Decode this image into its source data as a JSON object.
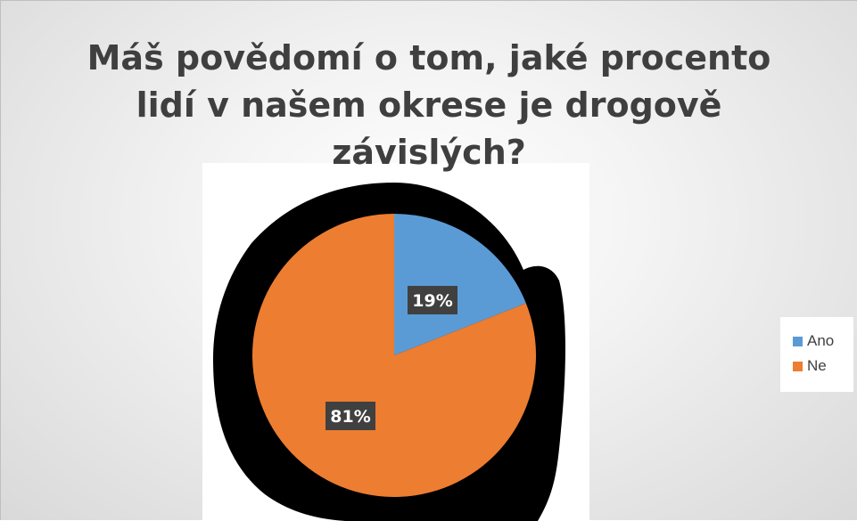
{
  "chart_data": {
    "type": "pie",
    "title": "Máš povědomí o tom, jaké procento lidí v našem okrese je drogově závislých?",
    "title_lines": [
      "Máš povědomí o tom, jaké procento",
      "lidí v našem okrese je drogově",
      "závislých?"
    ],
    "categories": [
      "Ano",
      "Ne"
    ],
    "values": [
      19,
      81
    ],
    "data_labels": [
      "19%",
      "81%"
    ],
    "colors": [
      "#5b9bd5",
      "#ed7d31"
    ],
    "legend_position": "right"
  }
}
